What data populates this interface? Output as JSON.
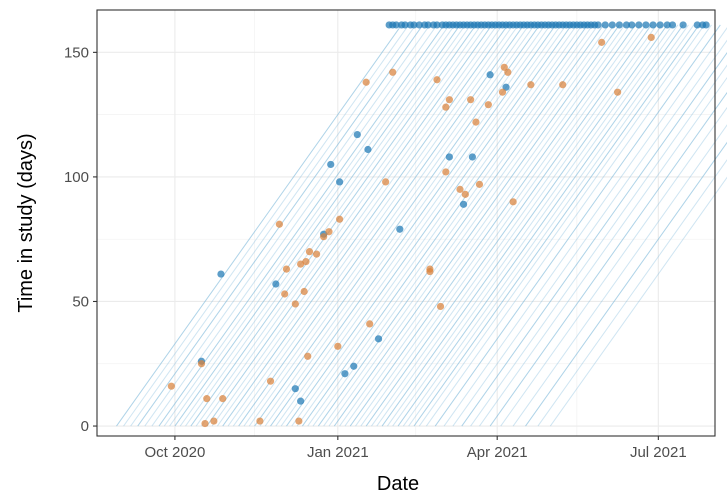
{
  "chart_data": {
    "type": "scatter",
    "xlabel": "Date",
    "ylabel": "Time in study (days)",
    "x_type": "date",
    "xlim": [
      "2020-08-18",
      "2021-08-02"
    ],
    "ylim": [
      -4,
      167
    ],
    "x_ticks": [
      {
        "date": "2020-10-01",
        "label": "Oct 2020"
      },
      {
        "date": "2021-01-01",
        "label": "Jan 2021"
      },
      {
        "date": "2021-04-01",
        "label": "Apr 2021"
      },
      {
        "date": "2021-07-01",
        "label": "Jul 2021"
      }
    ],
    "y_ticks": [
      0,
      50,
      100,
      150
    ],
    "grid": true,
    "legend": "none",
    "colors": {
      "censored": "#1f78b4",
      "event": "#d9823b",
      "line": "#6baed6"
    },
    "max_followup_days": 161,
    "line_start_dates": [
      "2020-08-29",
      "2020-09-02",
      "2020-09-06",
      "2020-09-10",
      "2020-09-14",
      "2020-09-18",
      "2020-09-22",
      "2020-09-25",
      "2020-09-28",
      "2020-10-01",
      "2020-10-04",
      "2020-10-07",
      "2020-10-10",
      "2020-10-13",
      "2020-10-16",
      "2020-10-19",
      "2020-10-22",
      "2020-10-25",
      "2020-10-28",
      "2020-10-31",
      "2020-11-03",
      "2020-11-06",
      "2020-11-09",
      "2020-11-12",
      "2020-11-15",
      "2020-11-18",
      "2020-11-21",
      "2020-11-24",
      "2020-11-27",
      "2020-11-30",
      "2020-12-03",
      "2020-12-06",
      "2020-12-09",
      "2020-12-12",
      "2020-12-15",
      "2020-12-18",
      "2020-12-21",
      "2020-12-24",
      "2020-12-27",
      "2020-12-30",
      "2021-01-02",
      "2021-01-05",
      "2021-01-08",
      "2021-01-11",
      "2021-01-14",
      "2021-01-17",
      "2021-01-20",
      "2021-01-23",
      "2021-01-26",
      "2021-01-29",
      "2021-02-01",
      "2021-02-04",
      "2021-02-07",
      "2021-02-10",
      "2021-02-13",
      "2021-02-16",
      "2021-02-20",
      "2021-02-25",
      "2021-03-02",
      "2021-03-07",
      "2021-03-12",
      "2021-03-17",
      "2021-03-22",
      "2021-03-28",
      "2021-04-03",
      "2021-04-10",
      "2021-04-17",
      "2021-04-24",
      "2021-05-01"
    ],
    "series": [
      {
        "status": "censored",
        "points": [
          [
            "2020-10-16",
            26
          ],
          [
            "2020-10-27",
            61
          ],
          [
            "2020-11-27",
            57
          ],
          [
            "2020-12-08",
            15
          ],
          [
            "2020-12-11",
            10
          ],
          [
            "2020-12-24",
            77
          ],
          [
            "2020-12-28",
            105
          ],
          [
            "2021-01-02",
            98
          ],
          [
            "2021-01-05",
            21
          ],
          [
            "2021-01-10",
            24
          ],
          [
            "2021-01-12",
            117
          ],
          [
            "2021-01-18",
            111
          ],
          [
            "2021-01-24",
            35
          ],
          [
            "2021-02-05",
            79
          ],
          [
            "2021-03-05",
            108
          ],
          [
            "2021-03-13",
            89
          ],
          [
            "2021-03-18",
            108
          ],
          [
            "2021-03-28",
            141
          ],
          [
            "2021-04-06",
            136
          ],
          [
            "2021-01-30",
            161
          ],
          [
            "2021-02-01",
            161
          ],
          [
            "2021-02-03",
            161
          ],
          [
            "2021-02-06",
            161
          ],
          [
            "2021-02-08",
            161
          ],
          [
            "2021-02-11",
            161
          ],
          [
            "2021-02-13",
            161
          ],
          [
            "2021-02-16",
            161
          ],
          [
            "2021-02-19",
            161
          ],
          [
            "2021-02-21",
            161
          ],
          [
            "2021-02-24",
            161
          ],
          [
            "2021-02-26",
            161
          ],
          [
            "2021-03-01",
            161
          ],
          [
            "2021-03-03",
            161
          ],
          [
            "2021-03-05",
            161
          ],
          [
            "2021-03-07",
            161
          ],
          [
            "2021-03-09",
            161
          ],
          [
            "2021-03-11",
            161
          ],
          [
            "2021-03-13",
            161
          ],
          [
            "2021-03-15",
            161
          ],
          [
            "2021-03-17",
            161
          ],
          [
            "2021-03-19",
            161
          ],
          [
            "2021-03-21",
            161
          ],
          [
            "2021-03-23",
            161
          ],
          [
            "2021-03-25",
            161
          ],
          [
            "2021-03-27",
            161
          ],
          [
            "2021-03-29",
            161
          ],
          [
            "2021-03-31",
            161
          ],
          [
            "2021-04-02",
            161
          ],
          [
            "2021-04-04",
            161
          ],
          [
            "2021-04-06",
            161
          ],
          [
            "2021-04-08",
            161
          ],
          [
            "2021-04-10",
            161
          ],
          [
            "2021-04-12",
            161
          ],
          [
            "2021-04-14",
            161
          ],
          [
            "2021-04-16",
            161
          ],
          [
            "2021-04-18",
            161
          ],
          [
            "2021-04-20",
            161
          ],
          [
            "2021-04-22",
            161
          ],
          [
            "2021-04-24",
            161
          ],
          [
            "2021-04-26",
            161
          ],
          [
            "2021-04-28",
            161
          ],
          [
            "2021-04-30",
            161
          ],
          [
            "2021-05-02",
            161
          ],
          [
            "2021-05-04",
            161
          ],
          [
            "2021-05-06",
            161
          ],
          [
            "2021-05-08",
            161
          ],
          [
            "2021-05-10",
            161
          ],
          [
            "2021-05-12",
            161
          ],
          [
            "2021-05-14",
            161
          ],
          [
            "2021-05-16",
            161
          ],
          [
            "2021-05-18",
            161
          ],
          [
            "2021-05-20",
            161
          ],
          [
            "2021-05-22",
            161
          ],
          [
            "2021-05-24",
            161
          ],
          [
            "2021-05-26",
            161
          ],
          [
            "2021-05-28",
            161
          ],
          [
            "2021-06-01",
            161
          ],
          [
            "2021-06-05",
            161
          ],
          [
            "2021-06-09",
            161
          ],
          [
            "2021-06-13",
            161
          ],
          [
            "2021-06-16",
            161
          ],
          [
            "2021-06-20",
            161
          ],
          [
            "2021-06-24",
            161
          ],
          [
            "2021-06-28",
            161
          ],
          [
            "2021-07-02",
            161
          ],
          [
            "2021-07-06",
            161
          ],
          [
            "2021-07-09",
            161
          ],
          [
            "2021-07-15",
            161
          ],
          [
            "2021-07-23",
            161
          ],
          [
            "2021-07-26",
            161
          ],
          [
            "2021-07-28",
            161
          ]
        ]
      },
      {
        "status": "event",
        "points": [
          [
            "2020-09-29",
            16
          ],
          [
            "2020-10-16",
            25
          ],
          [
            "2020-10-18",
            1
          ],
          [
            "2020-10-19",
            11
          ],
          [
            "2020-10-23",
            2
          ],
          [
            "2020-10-28",
            11
          ],
          [
            "2020-11-18",
            2
          ],
          [
            "2020-11-24",
            18
          ],
          [
            "2020-11-29",
            81
          ],
          [
            "2020-12-02",
            53
          ],
          [
            "2020-12-03",
            63
          ],
          [
            "2020-12-08",
            49
          ],
          [
            "2020-12-10",
            2
          ],
          [
            "2020-12-11",
            65
          ],
          [
            "2020-12-13",
            54
          ],
          [
            "2020-12-14",
            66
          ],
          [
            "2020-12-15",
            28
          ],
          [
            "2020-12-16",
            70
          ],
          [
            "2020-12-20",
            69
          ],
          [
            "2020-12-24",
            76
          ],
          [
            "2020-12-27",
            78
          ],
          [
            "2021-01-01",
            32
          ],
          [
            "2021-01-02",
            83
          ],
          [
            "2021-01-17",
            138
          ],
          [
            "2021-01-19",
            41
          ],
          [
            "2021-01-28",
            98
          ],
          [
            "2021-02-01",
            142
          ],
          [
            "2021-02-22",
            62
          ],
          [
            "2021-02-22",
            63
          ],
          [
            "2021-02-26",
            139
          ],
          [
            "2021-02-28",
            48
          ],
          [
            "2021-03-03",
            102
          ],
          [
            "2021-03-03",
            128
          ],
          [
            "2021-03-05",
            131
          ],
          [
            "2021-03-11",
            95
          ],
          [
            "2021-03-14",
            93
          ],
          [
            "2021-03-17",
            131
          ],
          [
            "2021-03-20",
            122
          ],
          [
            "2021-03-22",
            97
          ],
          [
            "2021-03-27",
            129
          ],
          [
            "2021-04-04",
            134
          ],
          [
            "2021-04-05",
            144
          ],
          [
            "2021-04-07",
            142
          ],
          [
            "2021-04-10",
            90
          ],
          [
            "2021-04-20",
            137
          ],
          [
            "2021-05-08",
            137
          ],
          [
            "2021-05-30",
            154
          ],
          [
            "2021-06-08",
            134
          ],
          [
            "2021-06-27",
            156
          ]
        ]
      }
    ]
  }
}
